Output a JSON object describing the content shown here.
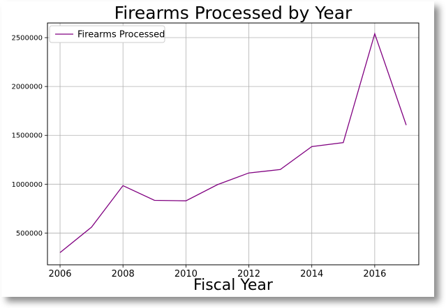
{
  "chart_data": {
    "type": "line",
    "title": "Firearms Processed by Year",
    "xlabel": "Fiscal Year",
    "ylabel": "",
    "x": [
      2006,
      2007,
      2008,
      2009,
      2010,
      2011,
      2012,
      2013,
      2014,
      2015,
      2016,
      2017
    ],
    "series": [
      {
        "name": "Firearms Processed",
        "color": "#800080",
        "values": [
          300000,
          560000,
          985000,
          835000,
          830000,
          995000,
          1115000,
          1150000,
          1385000,
          1425000,
          2540000,
          1605000
        ]
      }
    ],
    "xlim": [
      2005.6,
      2017.4
    ],
    "ylim": [
      175000,
      2650000
    ],
    "xticks": [
      2006,
      2008,
      2010,
      2012,
      2014,
      2016
    ],
    "yticks": [
      500000,
      1000000,
      1500000,
      2000000,
      2500000
    ],
    "grid": true,
    "legend_position": "top-left"
  }
}
